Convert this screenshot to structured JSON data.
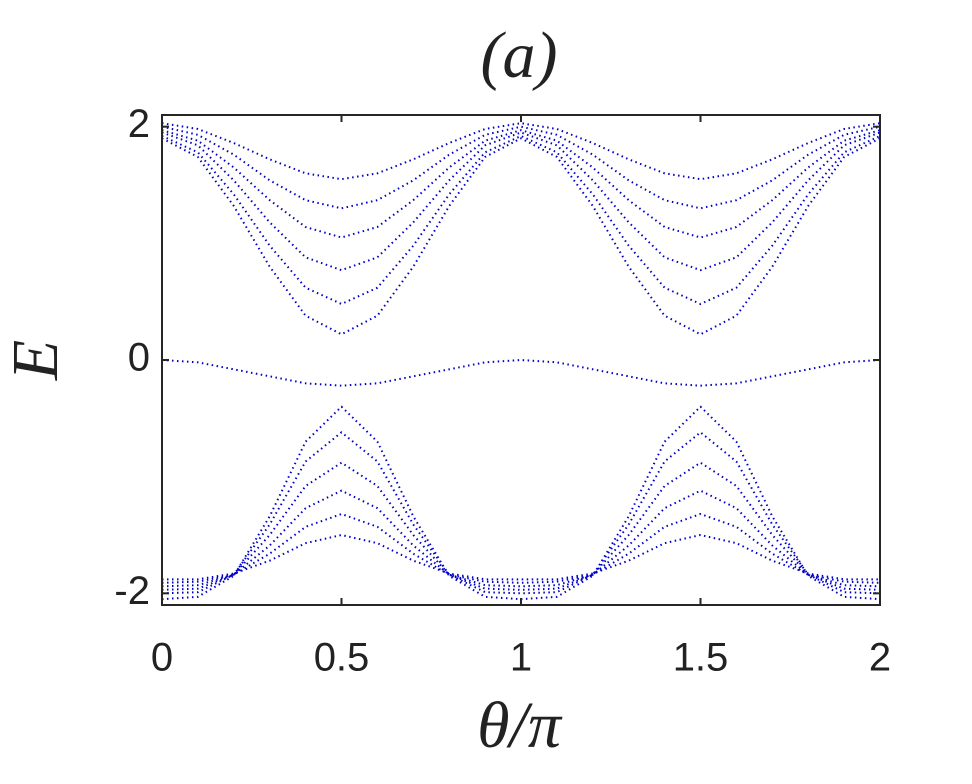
{
  "chart_data": {
    "type": "line",
    "title": "(a)",
    "x_label": "θ/π",
    "y_label": "E",
    "x": [
      0,
      0.1,
      0.2,
      0.3,
      0.4,
      0.5,
      0.6,
      0.7,
      0.8,
      0.9,
      1,
      1.1,
      1.2,
      1.3,
      1.4,
      1.5,
      1.6,
      1.7,
      1.8,
      1.9,
      2
    ],
    "xlim": [
      0,
      2
    ],
    "ylim": [
      -2.1,
      2.1
    ],
    "xticks": [
      0,
      0.5,
      1,
      1.5,
      2
    ],
    "yticks": [
      -2,
      0,
      2
    ],
    "grid": false,
    "series": [
      {
        "color": "#0000c8",
        "values": [
          1.9,
          1.74,
          1.32,
          0.8,
          0.38,
          0.22,
          0.38,
          0.8,
          1.32,
          1.74,
          1.9,
          1.74,
          1.32,
          0.8,
          0.38,
          0.22,
          0.38,
          0.8,
          1.32,
          1.74,
          1.9
        ]
      },
      {
        "color": "#0000c8",
        "values": [
          1.92,
          1.78,
          1.42,
          0.98,
          0.62,
          0.48,
          0.62,
          0.98,
          1.42,
          1.78,
          1.92,
          1.78,
          1.42,
          0.98,
          0.62,
          0.48,
          0.62,
          0.98,
          1.42,
          1.78,
          1.92
        ]
      },
      {
        "color": "#0000c8",
        "values": [
          1.95,
          1.84,
          1.54,
          1.18,
          0.88,
          0.77,
          0.88,
          1.18,
          1.54,
          1.84,
          1.95,
          1.84,
          1.54,
          1.18,
          0.88,
          0.77,
          0.88,
          1.18,
          1.54,
          1.84,
          1.95
        ]
      },
      {
        "color": "#0000c8",
        "values": [
          1.97,
          1.88,
          1.65,
          1.37,
          1.14,
          1.05,
          1.14,
          1.37,
          1.65,
          1.88,
          1.97,
          1.88,
          1.65,
          1.37,
          1.14,
          1.05,
          1.14,
          1.37,
          1.65,
          1.88,
          1.97
        ]
      },
      {
        "color": "#0000c8",
        "values": [
          2.0,
          1.93,
          1.76,
          1.54,
          1.37,
          1.3,
          1.37,
          1.54,
          1.76,
          1.93,
          2.0,
          1.93,
          1.76,
          1.54,
          1.37,
          1.3,
          1.37,
          1.54,
          1.76,
          1.93,
          2.0
        ]
      },
      {
        "color": "#0000c8",
        "values": [
          2.03,
          1.98,
          1.86,
          1.72,
          1.6,
          1.55,
          1.6,
          1.72,
          1.86,
          1.98,
          2.03,
          1.98,
          1.86,
          1.72,
          1.6,
          1.55,
          1.6,
          1.72,
          1.86,
          1.98,
          2.03
        ]
      },
      {
        "color": "#0000c8",
        "values": [
          0,
          -0.02,
          -0.08,
          -0.14,
          -0.2,
          -0.22,
          -0.2,
          -0.14,
          -0.08,
          -0.02,
          0,
          -0.02,
          -0.08,
          -0.14,
          -0.2,
          -0.22,
          -0.2,
          -0.14,
          -0.08,
          -0.02,
          0
        ]
      },
      {
        "color": "#0000c8",
        "values": [
          -2.05,
          -2.03,
          -1.85,
          -1.34,
          -0.7,
          -0.4,
          -0.7,
          -1.34,
          -1.85,
          -2.03,
          -2.05,
          -2.03,
          -1.85,
          -1.34,
          -0.7,
          -0.4,
          -0.7,
          -1.34,
          -1.85,
          -2.03,
          -2.05
        ]
      },
      {
        "color": "#0000c8",
        "values": [
          -2.0,
          -1.99,
          -1.84,
          -1.41,
          -0.87,
          -0.62,
          -0.87,
          -1.41,
          -1.84,
          -1.99,
          -2.0,
          -1.99,
          -1.84,
          -1.41,
          -0.87,
          -0.62,
          -0.87,
          -1.41,
          -1.84,
          -1.99,
          -2.0
        ]
      },
      {
        "color": "#0000c8",
        "values": [
          -1.97,
          -1.96,
          -1.84,
          -1.5,
          -1.08,
          -0.88,
          -1.08,
          -1.5,
          -1.84,
          -1.96,
          -1.97,
          -1.96,
          -1.84,
          -1.5,
          -1.08,
          -0.88,
          -1.08,
          -1.5,
          -1.84,
          -1.96,
          -1.97
        ]
      },
      {
        "color": "#0000c8",
        "values": [
          -1.94,
          -1.93,
          -1.84,
          -1.59,
          -1.27,
          -1.12,
          -1.27,
          -1.59,
          -1.84,
          -1.93,
          -1.94,
          -1.93,
          -1.84,
          -1.59,
          -1.27,
          -1.12,
          -1.27,
          -1.59,
          -1.84,
          -1.93,
          -1.94
        ]
      },
      {
        "color": "#0000c8",
        "values": [
          -1.91,
          -1.9,
          -1.84,
          -1.66,
          -1.43,
          -1.32,
          -1.43,
          -1.66,
          -1.84,
          -1.9,
          -1.91,
          -1.9,
          -1.84,
          -1.66,
          -1.43,
          -1.32,
          -1.43,
          -1.66,
          -1.84,
          -1.9,
          -1.91
        ]
      },
      {
        "color": "#0000c8",
        "values": [
          -1.88,
          -1.88,
          -1.83,
          -1.72,
          -1.57,
          -1.5,
          -1.57,
          -1.72,
          -1.83,
          -1.88,
          -1.88,
          -1.88,
          -1.83,
          -1.72,
          -1.57,
          -1.5,
          -1.57,
          -1.72,
          -1.83,
          -1.88,
          -1.88
        ]
      }
    ]
  }
}
